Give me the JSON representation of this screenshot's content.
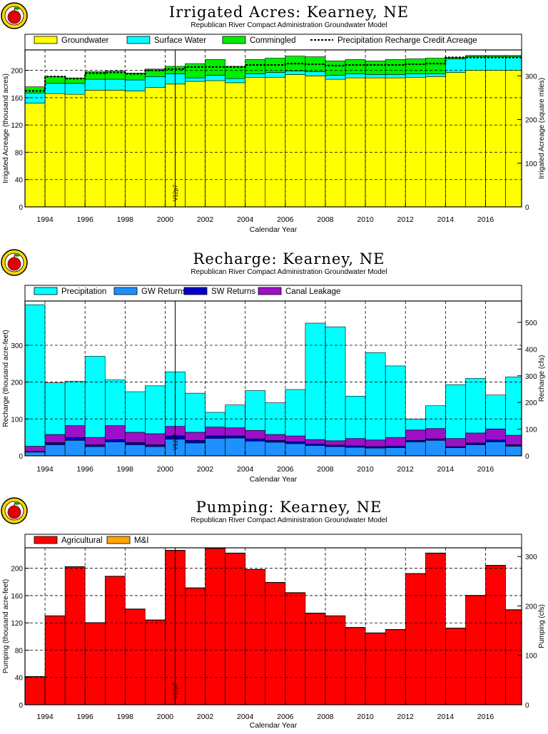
{
  "chart_data": [
    {
      "type": "area",
      "title": "Irrigated Acres: Kearney, NE",
      "subtitle": "Republican River Compact Administration Groundwater Model",
      "xlabel": "Calendar Year",
      "ylabel": "Irrigated Acreage (thousand acres)",
      "y2label": "Irrigated Acreage (square miles)",
      "ylim": [
        0,
        230
      ],
      "y2lim": [
        0,
        359.4
      ],
      "xlim": [
        1993,
        2017.8
      ],
      "yticks": [
        0,
        40,
        80,
        120,
        160,
        200
      ],
      "y2ticks": [
        0,
        100,
        200,
        300
      ],
      "xticks": [
        1994,
        1996,
        1998,
        2000,
        2002,
        2004,
        2006,
        2008,
        2010,
        2012,
        2014,
        2016
      ],
      "grid": true,
      "legend_position": "top",
      "marker_label": "V12p7",
      "marker_x": 2000.5,
      "stacked": true,
      "x": [
        1993,
        1994,
        1995,
        1996,
        1997,
        1998,
        1999,
        2000,
        2001,
        2002,
        2003,
        2004,
        2005,
        2006,
        2007,
        2008,
        2009,
        2010,
        2011,
        2012,
        2013,
        2014,
        2015,
        2016,
        2017
      ],
      "series": [
        {
          "name": "Groundwater",
          "color": "#ffff00",
          "values": [
            152,
            166,
            165,
            171,
            171,
            170,
            175,
            180,
            184,
            185,
            182,
            190,
            190,
            194,
            192,
            187,
            189,
            189,
            189,
            190,
            191,
            197,
            200,
            200,
            200
          ]
        },
        {
          "name": "Surface Water",
          "color": "#00ffff",
          "values": [
            15,
            15,
            16,
            16,
            16,
            16,
            16,
            15,
            5,
            8,
            6,
            5,
            7,
            5,
            6,
            6,
            6,
            5,
            5,
            5,
            4,
            20,
            20,
            20,
            20
          ]
        },
        {
          "name": "Commingled",
          "color": "#00ee00",
          "values": [
            9,
            10,
            8,
            11,
            12,
            10,
            11,
            11,
            21,
            23,
            18,
            21,
            21,
            22,
            22,
            21,
            21,
            20,
            22,
            22,
            23,
            2,
            2,
            2,
            2
          ]
        }
      ],
      "lines": [
        {
          "name": "Precipitation Recharge Credit Acreage",
          "color": "#000000",
          "values": [
            170,
            191,
            188,
            196,
            197,
            195,
            200,
            202,
            205,
            205,
            205,
            208,
            208,
            210,
            209,
            207,
            208,
            208,
            208,
            209,
            210,
            219,
            219,
            219,
            219
          ]
        }
      ]
    },
    {
      "type": "area",
      "title": "Recharge: Kearney, NE",
      "subtitle": "Republican River Compact Administration Groundwater Model",
      "xlabel": "Calendar Year",
      "ylabel": "Recharge (thousand acre-feet)",
      "y2label": "Recharge (cfs)",
      "ylim": [
        0,
        420
      ],
      "y2lim": [
        0,
        580
      ],
      "xlim": [
        1993,
        2017.8
      ],
      "yticks": [
        0,
        100,
        200,
        300
      ],
      "y2ticks": [
        0,
        100,
        200,
        300,
        400,
        500
      ],
      "xticks": [
        1994,
        1996,
        1998,
        2000,
        2002,
        2004,
        2006,
        2008,
        2010,
        2012,
        2014,
        2016
      ],
      "grid": true,
      "legend_position": "top",
      "marker_label": "V12p7",
      "marker_x": 2000.5,
      "stacked": true,
      "x": [
        1993,
        1994,
        1995,
        1996,
        1997,
        1998,
        1999,
        2000,
        2001,
        2002,
        2003,
        2004,
        2005,
        2006,
        2007,
        2008,
        2009,
        2010,
        2011,
        2012,
        2013,
        2014,
        2015,
        2016,
        2017
      ],
      "series": [
        {
          "name": "GW Returns",
          "color": "#1e90ff",
          "values": [
            10,
            30,
            42,
            25,
            38,
            30,
            25,
            45,
            35,
            47,
            48,
            40,
            37,
            33,
            28,
            25,
            23,
            21,
            22,
            38,
            42,
            22,
            30,
            38,
            26
          ]
        },
        {
          "name": "SW Returns",
          "color": "#0000cd",
          "values": [
            2,
            6,
            8,
            5,
            6,
            6,
            5,
            9,
            7,
            7,
            6,
            6,
            5,
            5,
            4,
            4,
            4,
            4,
            4,
            4,
            4,
            3,
            5,
            5,
            4
          ]
        },
        {
          "name": "Canal Leakage",
          "color": "#9b10c8",
          "values": [
            14,
            22,
            32,
            20,
            38,
            28,
            30,
            26,
            22,
            24,
            22,
            23,
            16,
            16,
            12,
            12,
            20,
            18,
            24,
            28,
            28,
            22,
            27,
            30,
            26
          ]
        },
        {
          "name": "Precipitation",
          "color": "#00ffff",
          "values": [
            384,
            140,
            120,
            220,
            124,
            110,
            130,
            148,
            106,
            40,
            62,
            108,
            86,
            126,
            316,
            309,
            115,
            237,
            194,
            30,
            62,
            146,
            148,
            92,
            158
          ]
        }
      ]
    },
    {
      "type": "area",
      "title": "Pumping: Kearney, NE",
      "subtitle": "Republican River Compact Administration Groundwater Model",
      "xlabel": "Calendar Year",
      "ylabel": "Pumping (thousand acre-feet)",
      "y2label": "Pumping (cfs)",
      "ylim": [
        0,
        230
      ],
      "y2lim": [
        0,
        317.6
      ],
      "xlim": [
        1993,
        2017.8
      ],
      "yticks": [
        0,
        40,
        80,
        120,
        160,
        200
      ],
      "y2ticks": [
        0,
        100,
        200,
        300
      ],
      "xticks": [
        1994,
        1996,
        1998,
        2000,
        2002,
        2004,
        2006,
        2008,
        2010,
        2012,
        2014,
        2016
      ],
      "grid": true,
      "legend_position": "top",
      "marker_label": "V12p7",
      "marker_x": 2000.5,
      "stacked": true,
      "x": [
        1993,
        1994,
        1995,
        1996,
        1997,
        1998,
        1999,
        2000,
        2001,
        2002,
        2003,
        2004,
        2005,
        2006,
        2007,
        2008,
        2009,
        2010,
        2011,
        2012,
        2013,
        2014,
        2015,
        2016,
        2017
      ],
      "series": [
        {
          "name": "Agricultural",
          "color": "#ff0000",
          "values": [
            41,
            130,
            202,
            120,
            188,
            140,
            124,
            226,
            171,
            229,
            222,
            198,
            179,
            164,
            134,
            130,
            113,
            105,
            110,
            192,
            222,
            112,
            160,
            204,
            139
          ]
        },
        {
          "name": "M&I",
          "color": "#ffa500",
          "values": [
            0.5,
            0.5,
            0.5,
            0.5,
            0.5,
            0.5,
            0.5,
            0.5,
            0.5,
            0.5,
            0.5,
            0.5,
            0.5,
            0.5,
            0.5,
            0.5,
            0.5,
            0.5,
            0.5,
            0.5,
            0.5,
            0.5,
            0.5,
            0.5,
            0.5
          ]
        }
      ]
    }
  ]
}
